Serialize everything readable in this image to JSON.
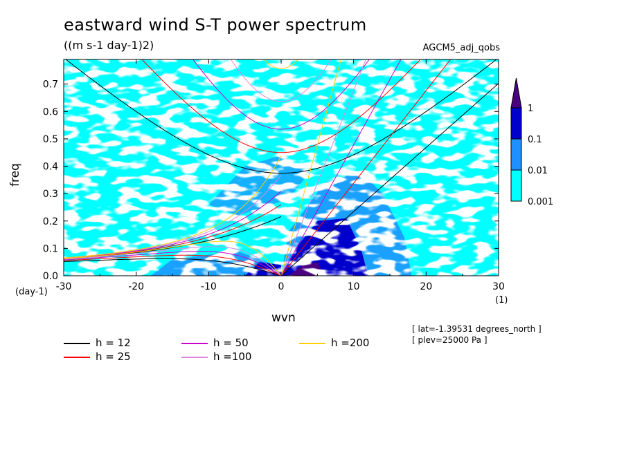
{
  "chart_data": {
    "type": "heatmap",
    "title": "eastward wind S-T power spectrum",
    "units": "((m s-1 day-1)2)",
    "run_label": "AGCM5_adj_qobs",
    "xlabel": "wvn",
    "ylabel": "freq",
    "x_unit": "(1)",
    "y_unit": "(day-1)",
    "xlim": [
      -30,
      30
    ],
    "ylim": [
      0,
      0.79
    ],
    "x_ticks": [
      -30,
      -20,
      -10,
      0,
      10,
      20,
      30
    ],
    "y_ticks": [
      0.0,
      0.1,
      0.2,
      0.3,
      0.4,
      0.5,
      0.6,
      0.7
    ],
    "x_tick_labels": [
      "-30",
      "-20",
      "-10",
      "0",
      "10",
      "20",
      "30"
    ],
    "y_tick_labels": [
      "0.0",
      "0.1",
      "0.2",
      "0.3",
      "0.4",
      "0.5",
      "0.6",
      "0.7"
    ],
    "colorbar": {
      "levels": [
        "0.001",
        "0.01",
        "0.1",
        "1"
      ],
      "colors": [
        "#00ffff",
        "#1e90ff",
        "#0000cd",
        "#4b0082"
      ]
    },
    "metadata": [
      "[ lat=-1.39531 degrees_north ]",
      "[ plev=25000 Pa ]"
    ],
    "dispersion_curves": [
      {
        "name": "h = 12",
        "h": 12,
        "color": "#000000"
      },
      {
        "name": "h = 25",
        "h": 25,
        "color": "#ff0000"
      },
      {
        "name": "h = 50",
        "h": 50,
        "color": "#cc00cc"
      },
      {
        "name": "h =100",
        "h": 100,
        "color": "#dd88dd"
      },
      {
        "name": "h =200",
        "h": 200,
        "color": "#ffcc00"
      }
    ],
    "grid": false,
    "legend_position": "bottom-left"
  }
}
